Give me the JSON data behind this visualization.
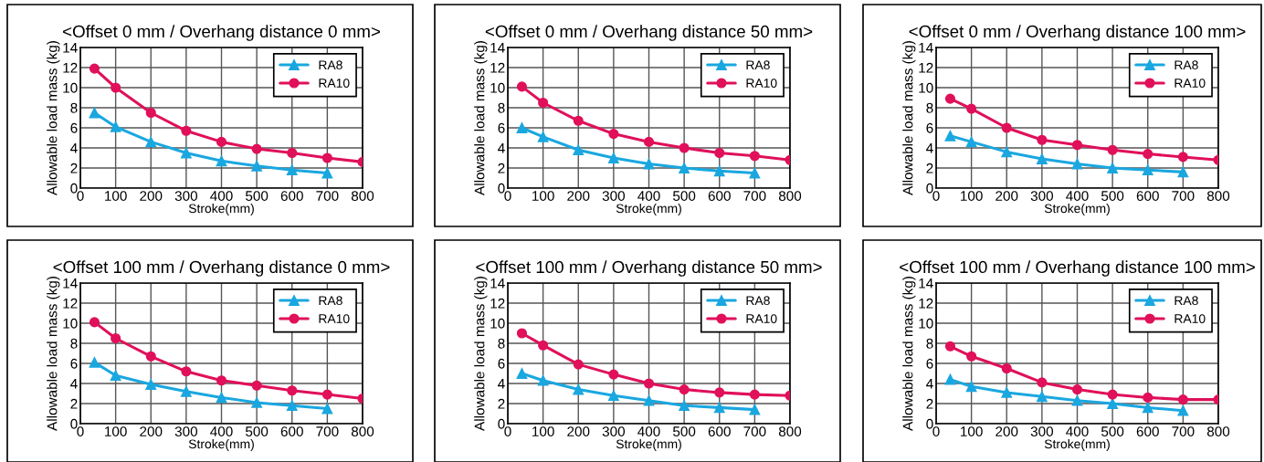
{
  "chart_data": [
    {
      "type": "line",
      "title": "<Offset 0 mm / Overhang distance 0 mm>",
      "xlabel": "Stroke(mm)",
      "ylabel": "Allowable load mass (kg)",
      "xlim": [
        0,
        800
      ],
      "ylim": [
        0,
        14
      ],
      "xticks": [
        0,
        100,
        200,
        300,
        400,
        500,
        600,
        700,
        800
      ],
      "yticks": [
        0,
        2,
        4,
        6,
        8,
        10,
        12,
        14
      ],
      "grid": true,
      "legend": "top right",
      "series": [
        {
          "name": "RA8",
          "color": "#1aa7e0",
          "marker": "triangle",
          "x": [
            40,
            100,
            200,
            300,
            400,
            500,
            600,
            700
          ],
          "values": [
            7.5,
            6.1,
            4.6,
            3.5,
            2.7,
            2.2,
            1.8,
            1.5
          ]
        },
        {
          "name": "RA10",
          "color": "#e0105a",
          "marker": "circle",
          "x": [
            40,
            100,
            200,
            300,
            400,
            500,
            600,
            700,
            800
          ],
          "values": [
            11.9,
            10.0,
            7.5,
            5.7,
            4.6,
            3.9,
            3.5,
            3.0,
            2.6
          ]
        }
      ]
    },
    {
      "type": "line",
      "title": "<Offset 0 mm / Overhang distance 50 mm>",
      "xlabel": "Stroke(mm)",
      "ylabel": "Allowable load mass (kg)",
      "xlim": [
        0,
        800
      ],
      "ylim": [
        0,
        14
      ],
      "xticks": [
        0,
        100,
        200,
        300,
        400,
        500,
        600,
        700,
        800
      ],
      "yticks": [
        0,
        2,
        4,
        6,
        8,
        10,
        12,
        14
      ],
      "grid": true,
      "legend": "top right",
      "series": [
        {
          "name": "RA8",
          "color": "#1aa7e0",
          "marker": "triangle",
          "x": [
            40,
            100,
            200,
            300,
            400,
            500,
            600,
            700
          ],
          "values": [
            6.0,
            5.1,
            3.8,
            3.0,
            2.4,
            2.0,
            1.7,
            1.5
          ]
        },
        {
          "name": "RA10",
          "color": "#e0105a",
          "marker": "circle",
          "x": [
            40,
            100,
            200,
            300,
            400,
            500,
            600,
            700,
            800
          ],
          "values": [
            10.1,
            8.5,
            6.7,
            5.4,
            4.6,
            4.0,
            3.5,
            3.2,
            2.8
          ]
        }
      ]
    },
    {
      "type": "line",
      "title": "<Offset 0 mm / Overhang distance 100 mm>",
      "xlabel": "Stroke(mm)",
      "ylabel": "Allowable load mass (kg)",
      "xlim": [
        0,
        800
      ],
      "ylim": [
        0,
        14
      ],
      "xticks": [
        0,
        100,
        200,
        300,
        400,
        500,
        600,
        700,
        800
      ],
      "yticks": [
        0,
        2,
        4,
        6,
        8,
        10,
        12,
        14
      ],
      "grid": true,
      "legend": "top right",
      "series": [
        {
          "name": "RA8",
          "color": "#1aa7e0",
          "marker": "triangle",
          "x": [
            40,
            100,
            200,
            300,
            400,
            500,
            600,
            700
          ],
          "values": [
            5.2,
            4.6,
            3.6,
            2.9,
            2.4,
            2.0,
            1.8,
            1.6
          ]
        },
        {
          "name": "RA10",
          "color": "#e0105a",
          "marker": "circle",
          "x": [
            40,
            100,
            200,
            300,
            400,
            500,
            600,
            700,
            800
          ],
          "values": [
            8.9,
            7.9,
            6.0,
            4.8,
            4.3,
            3.8,
            3.4,
            3.1,
            2.8
          ]
        }
      ]
    },
    {
      "type": "line",
      "title": "<Offset 100 mm / Overhang distance 0 mm>",
      "xlabel": "Stroke(mm)",
      "ylabel": "Allowable load mass (kg)",
      "xlim": [
        0,
        800
      ],
      "ylim": [
        0,
        14
      ],
      "xticks": [
        0,
        100,
        200,
        300,
        400,
        500,
        600,
        700,
        800
      ],
      "yticks": [
        0,
        2,
        4,
        6,
        8,
        10,
        12,
        14
      ],
      "grid": true,
      "legend": "top right",
      "series": [
        {
          "name": "RA8",
          "color": "#1aa7e0",
          "marker": "triangle",
          "x": [
            40,
            100,
            200,
            300,
            400,
            500,
            600,
            700
          ],
          "values": [
            6.1,
            4.8,
            3.9,
            3.2,
            2.6,
            2.1,
            1.8,
            1.5
          ]
        },
        {
          "name": "RA10",
          "color": "#e0105a",
          "marker": "circle",
          "x": [
            40,
            100,
            200,
            300,
            400,
            500,
            600,
            700,
            800
          ],
          "values": [
            10.1,
            8.5,
            6.7,
            5.2,
            4.3,
            3.8,
            3.3,
            2.9,
            2.5
          ]
        }
      ]
    },
    {
      "type": "line",
      "title": "<Offset 100 mm / Overhang distance 50 mm>",
      "xlabel": "Stroke(mm)",
      "ylabel": "Allowable load mass (kg)",
      "xlim": [
        0,
        800
      ],
      "ylim": [
        0,
        14
      ],
      "xticks": [
        0,
        100,
        200,
        300,
        400,
        500,
        600,
        700,
        800
      ],
      "yticks": [
        0,
        2,
        4,
        6,
        8,
        10,
        12,
        14
      ],
      "grid": true,
      "legend": "top right",
      "series": [
        {
          "name": "RA8",
          "color": "#1aa7e0",
          "marker": "triangle",
          "x": [
            40,
            100,
            200,
            300,
            400,
            500,
            600,
            700
          ],
          "values": [
            5.0,
            4.3,
            3.4,
            2.8,
            2.3,
            1.8,
            1.6,
            1.4
          ]
        },
        {
          "name": "RA10",
          "color": "#e0105a",
          "marker": "circle",
          "x": [
            40,
            100,
            200,
            300,
            400,
            500,
            600,
            700,
            800
          ],
          "values": [
            9.0,
            7.8,
            5.9,
            4.9,
            4.0,
            3.4,
            3.1,
            2.9,
            2.8
          ]
        }
      ]
    },
    {
      "type": "line",
      "title": "<Offset 100 mm / Overhang distance 100 mm>",
      "xlabel": "Stroke(mm)",
      "ylabel": "Allowable load mass (kg)",
      "xlim": [
        0,
        800
      ],
      "ylim": [
        0,
        14
      ],
      "xticks": [
        0,
        100,
        200,
        300,
        400,
        500,
        600,
        700,
        800
      ],
      "yticks": [
        0,
        2,
        4,
        6,
        8,
        10,
        12,
        14
      ],
      "grid": true,
      "legend": "top right",
      "series": [
        {
          "name": "RA8",
          "color": "#1aa7e0",
          "marker": "triangle",
          "x": [
            40,
            100,
            200,
            300,
            400,
            500,
            600,
            700
          ],
          "values": [
            4.4,
            3.7,
            3.1,
            2.7,
            2.3,
            2.0,
            1.6,
            1.3
          ]
        },
        {
          "name": "RA10",
          "color": "#e0105a",
          "marker": "circle",
          "x": [
            40,
            100,
            200,
            300,
            400,
            500,
            600,
            700,
            800
          ],
          "values": [
            7.7,
            6.7,
            5.5,
            4.1,
            3.4,
            2.9,
            2.6,
            2.4,
            2.4
          ]
        }
      ]
    }
  ]
}
